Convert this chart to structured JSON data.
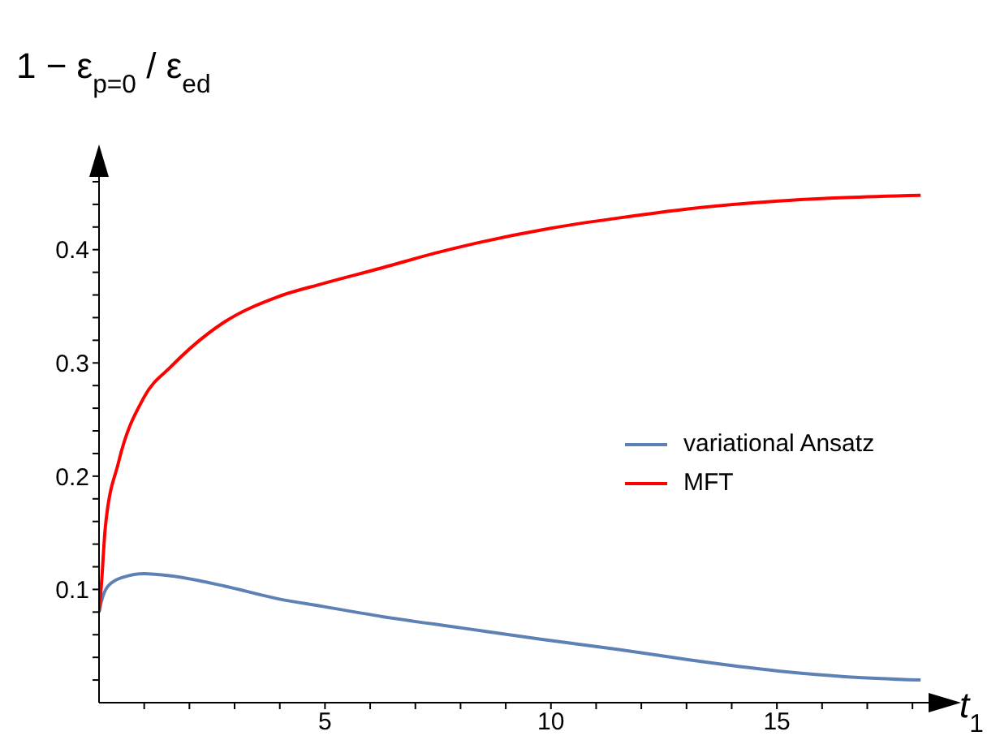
{
  "chart_data": {
    "type": "line",
    "xlabel": "t$_{1}$",
    "ylabel": "1 − ε$_{p=0}$ / ε$_{ed}$",
    "xlim": [
      0,
      18.5
    ],
    "xticks": [
      {
        "value": 1,
        "label": null
      },
      {
        "value": 2,
        "label": null
      },
      {
        "value": 3,
        "label": null
      },
      {
        "value": 4,
        "label": null
      },
      5,
      {
        "value": 6,
        "label": null
      },
      {
        "value": 7,
        "label": null
      },
      {
        "value": 8,
        "label": null
      },
      {
        "value": 9,
        "label": null
      },
      10,
      {
        "value": 11,
        "label": null
      },
      {
        "value": 12,
        "label": null
      },
      {
        "value": 13,
        "label": null
      },
      {
        "value": 14,
        "label": null
      },
      15,
      {
        "value": 16,
        "label": null
      },
      {
        "value": 17,
        "label": null
      },
      {
        "value": 18,
        "label": null
      }
    ],
    "ylim": [
      0,
      0.47
    ],
    "yticks": [
      {
        "value": 0.02,
        "label": null
      },
      {
        "value": 0.04,
        "label": null
      },
      {
        "value": 0.06,
        "label": null
      },
      {
        "value": 0.08,
        "label": null
      },
      0.1,
      {
        "value": 0.12,
        "label": null
      },
      {
        "value": 0.14,
        "label": null
      },
      {
        "value": 0.16,
        "label": null
      },
      {
        "value": 0.18,
        "label": null
      },
      0.2,
      {
        "value": 0.22,
        "label": null
      },
      {
        "value": 0.24,
        "label": null
      },
      {
        "value": 0.26,
        "label": null
      },
      {
        "value": 0.28,
        "label": null
      },
      0.3,
      {
        "value": 0.32,
        "label": null
      },
      {
        "value": 0.34,
        "label": null
      },
      {
        "value": 0.36,
        "label": null
      },
      {
        "value": 0.38,
        "label": null
      },
      0.4,
      {
        "value": 0.42,
        "label": null
      },
      {
        "value": 0.44,
        "label": null
      },
      {
        "value": 0.46,
        "label": null
      }
    ],
    "legend": "right",
    "marker": "none",
    "line_style": "solid",
    "series": [
      {
        "name": "variational Ansatz",
        "color": "#5e81b5",
        "x": [
          0,
          0.05,
          0.2,
          0.55,
          1.0,
          1.6,
          2.77,
          3.93,
          4.95,
          6.27,
          8.02,
          9.77,
          11.5,
          13.03,
          15.03,
          16.5,
          18.18
        ],
        "values": [
          0.08,
          0.089,
          0.103,
          0.111,
          0.114,
          0.112,
          0.103,
          0.092,
          0.085,
          0.076,
          0.066,
          0.056,
          0.047,
          0.038,
          0.028,
          0.023,
          0.02
        ]
      },
      {
        "name": "MFT",
        "color": "#ff0000",
        "x": [
          0,
          0.05,
          0.14,
          0.43,
          1.0,
          1.6,
          2.77,
          3.93,
          4.95,
          6.27,
          7.44,
          8.37,
          10,
          11.5,
          13.03,
          15.03,
          16.5,
          18.18
        ],
        "values": [
          0.08,
          0.103,
          0.155,
          0.212,
          0.27,
          0.297,
          0.336,
          0.358,
          0.37,
          0.384,
          0.397,
          0.406,
          0.419,
          0.428,
          0.436,
          0.443,
          0.446,
          0.448
        ]
      }
    ]
  }
}
